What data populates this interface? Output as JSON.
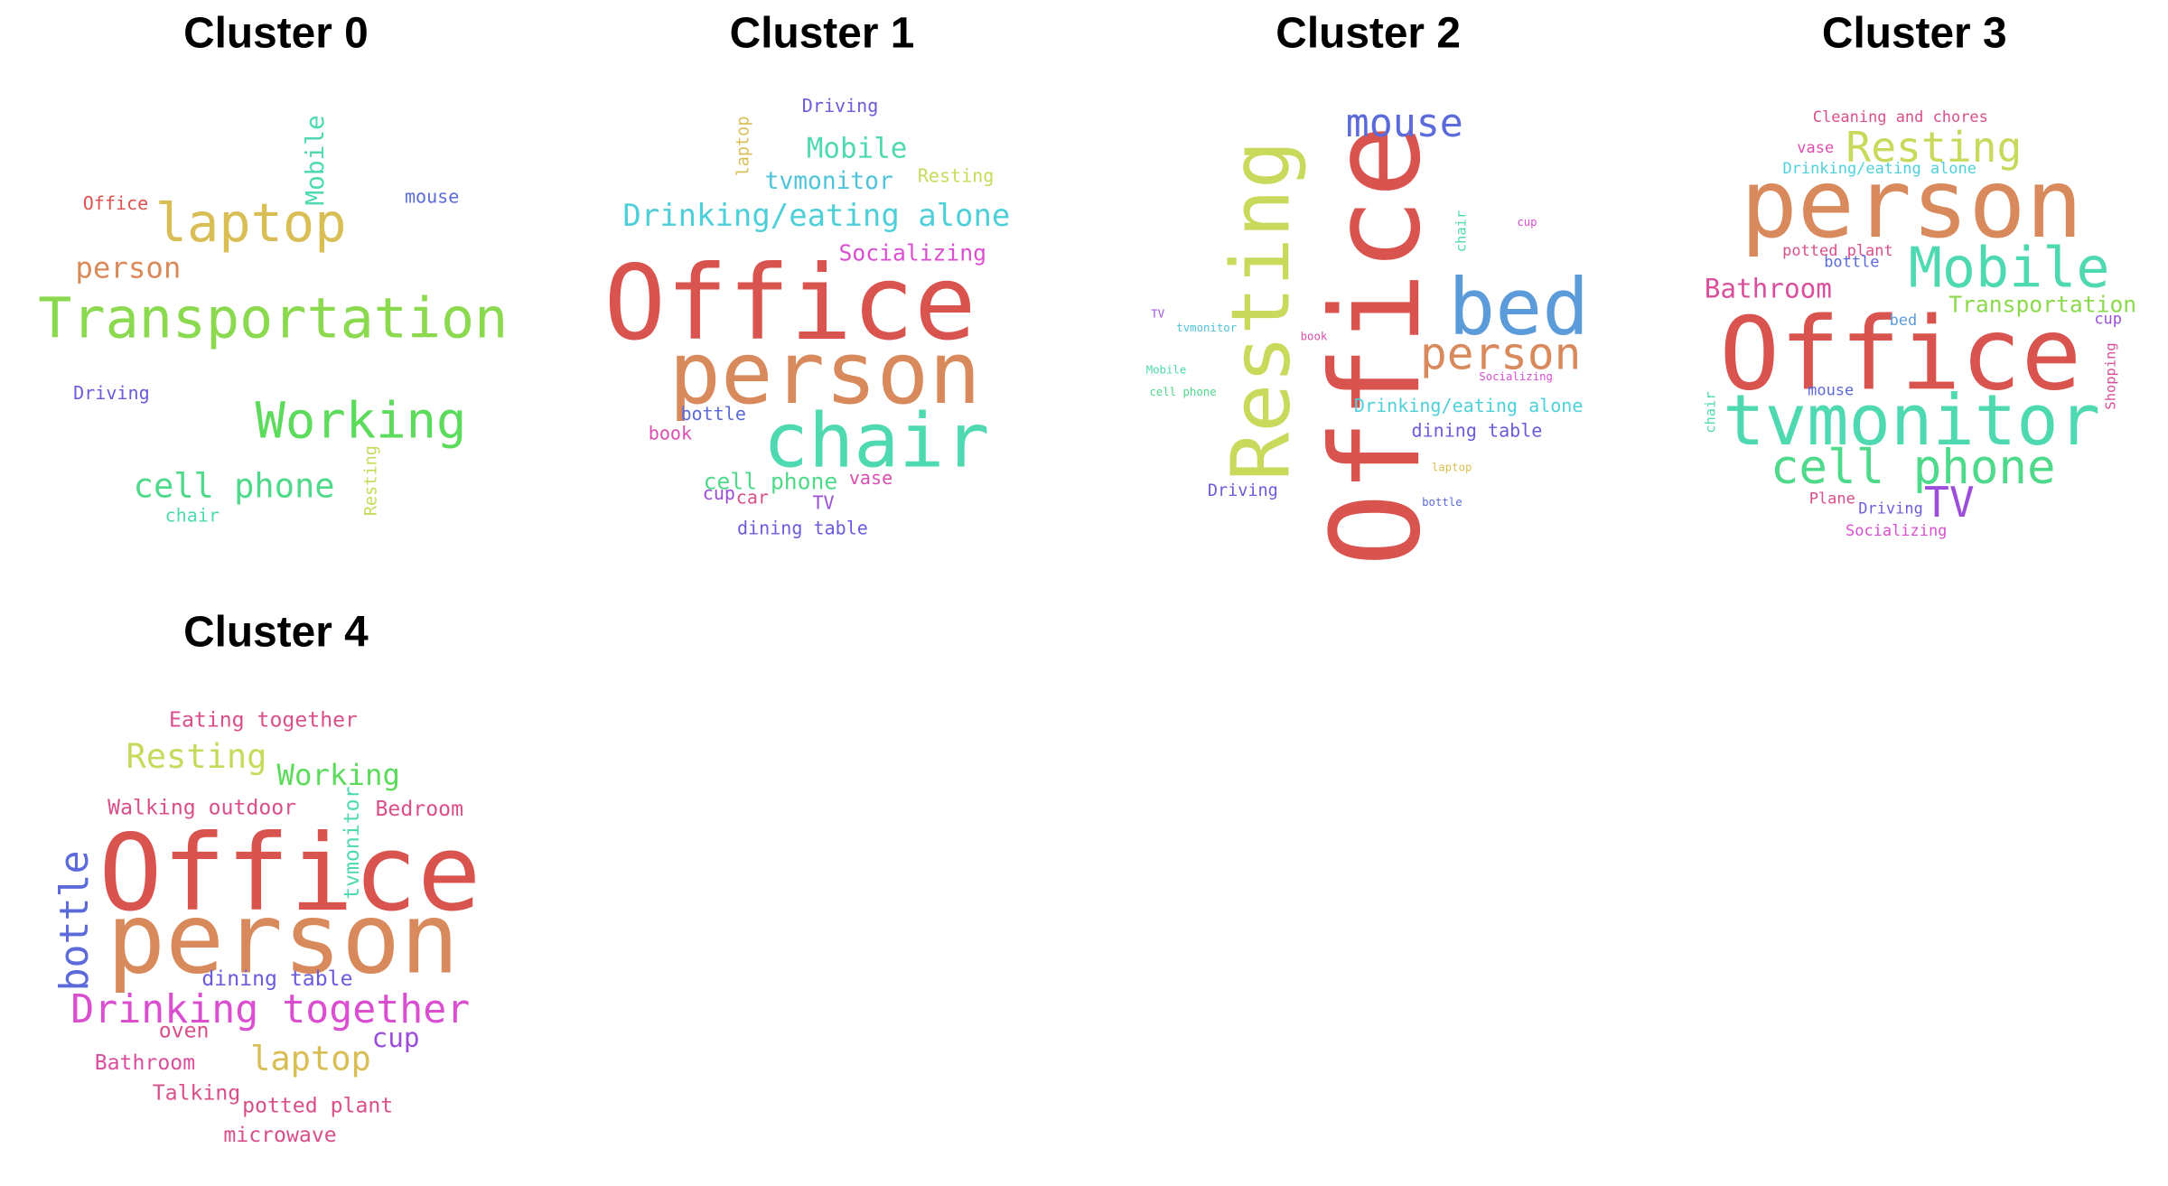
{
  "clusters": [
    {
      "title": "Cluster 0",
      "words": [
        {
          "text": "Transportation",
          "color": "#8bd94f",
          "size": 40,
          "rot": 0
        },
        {
          "text": "laptop",
          "color": "#d9be55",
          "size": 38,
          "rot": 0
        },
        {
          "text": "Working",
          "color": "#5cdb5c",
          "size": 36,
          "rot": 0
        },
        {
          "text": "cell phone",
          "color": "#4fd98a",
          "size": 24,
          "rot": 0
        },
        {
          "text": "person",
          "color": "#d98a5c",
          "size": 21,
          "rot": 0
        },
        {
          "text": "Mobile",
          "color": "#4fd9b0",
          "size": 18,
          "rot": 90
        },
        {
          "text": "Office",
          "color": "#d9534f",
          "size": 13,
          "rot": 0
        },
        {
          "text": "mouse",
          "color": "#5c6bd9",
          "size": 13,
          "rot": 0
        },
        {
          "text": "Driving",
          "color": "#6b5cd9",
          "size": 13,
          "rot": 0
        },
        {
          "text": "Resting",
          "color": "#c8d95c",
          "size": 12,
          "rot": 90
        },
        {
          "text": "chair",
          "color": "#4fd9b0",
          "size": 13,
          "rot": 0
        }
      ]
    },
    {
      "title": "Cluster 1",
      "words": [
        {
          "text": "Office",
          "color": "#d9534f",
          "size": 74,
          "rot": 0
        },
        {
          "text": "person",
          "color": "#d98a5c",
          "size": 62,
          "rot": 0
        },
        {
          "text": "chair",
          "color": "#4fd9b0",
          "size": 54,
          "rot": 0
        },
        {
          "text": "Drinking/eating alone",
          "color": "#4fd0d9",
          "size": 22,
          "rot": 0
        },
        {
          "text": "Mobile",
          "color": "#4fd9b0",
          "size": 20,
          "rot": 0
        },
        {
          "text": "tvmonitor",
          "color": "#4fc3d9",
          "size": 17,
          "rot": 0
        },
        {
          "text": "Socializing",
          "color": "#d94fd0",
          "size": 16,
          "rot": 0
        },
        {
          "text": "cell phone",
          "color": "#4fd98a",
          "size": 16,
          "rot": 0
        },
        {
          "text": "Driving",
          "color": "#6b5cd9",
          "size": 13,
          "rot": 0
        },
        {
          "text": "Resting",
          "color": "#c8d95c",
          "size": 13,
          "rot": 0
        },
        {
          "text": "laptop",
          "color": "#d9be55",
          "size": 12,
          "rot": 90
        },
        {
          "text": "bottle",
          "color": "#5c6bd9",
          "size": 13,
          "rot": 0
        },
        {
          "text": "book",
          "color": "#d94fb0",
          "size": 13,
          "rot": 0
        },
        {
          "text": "vase",
          "color": "#d94fb0",
          "size": 13,
          "rot": 0
        },
        {
          "text": "cup",
          "color": "#9b4fd9",
          "size": 13,
          "rot": 0
        },
        {
          "text": "car",
          "color": "#d94f8a",
          "size": 13,
          "rot": 0
        },
        {
          "text": "TV",
          "color": "#9b4fd9",
          "size": 13,
          "rot": 0
        },
        {
          "text": "dining table",
          "color": "#6b5cd9",
          "size": 13,
          "rot": 0
        }
      ]
    },
    {
      "title": "Cluster 2",
      "words": [
        {
          "text": "Office",
          "color": "#d9534f",
          "size": 88,
          "rot": 90
        },
        {
          "text": "Resting",
          "color": "#c8d95c",
          "size": 58,
          "rot": 90
        },
        {
          "text": "bed",
          "color": "#5c9bd9",
          "size": 56,
          "rot": 0
        },
        {
          "text": "person",
          "color": "#d98a5c",
          "size": 32,
          "rot": 0
        },
        {
          "text": "mouse",
          "color": "#5c6bd9",
          "size": 28,
          "rot": 0
        },
        {
          "text": "Drinking/eating alone",
          "color": "#4fd0d9",
          "size": 13,
          "rot": 0
        },
        {
          "text": "dining table",
          "color": "#6b5cd9",
          "size": 13,
          "rot": 0
        },
        {
          "text": "Driving",
          "color": "#6b5cd9",
          "size": 12,
          "rot": 0
        },
        {
          "text": "chair",
          "color": "#4fd9b0",
          "size": 10,
          "rot": 90
        },
        {
          "text": "cup",
          "color": "#d94fd0",
          "size": 8,
          "rot": 0
        },
        {
          "text": "TV",
          "color": "#9b4fd9",
          "size": 8,
          "rot": 0
        },
        {
          "text": "tvmonitor",
          "color": "#4fc3d9",
          "size": 8,
          "rot": 0
        },
        {
          "text": "book",
          "color": "#d94fb0",
          "size": 8,
          "rot": 0
        },
        {
          "text": "Mobile",
          "color": "#4fd9b0",
          "size": 8,
          "rot": 0
        },
        {
          "text": "Socializing",
          "color": "#d94fd0",
          "size": 8,
          "rot": 0
        },
        {
          "text": "cell phone",
          "color": "#4fd98a",
          "size": 8,
          "rot": 0
        },
        {
          "text": "laptop",
          "color": "#d9be55",
          "size": 8,
          "rot": 0
        },
        {
          "text": "bottle",
          "color": "#5c6bd9",
          "size": 8,
          "rot": 0
        }
      ]
    },
    {
      "title": "Cluster 3",
      "words": [
        {
          "text": "Office",
          "color": "#d9534f",
          "size": 72,
          "rot": 0
        },
        {
          "text": "person",
          "color": "#d98a5c",
          "size": 68,
          "rot": 0
        },
        {
          "text": "tvmonitor",
          "color": "#4fd9b0",
          "size": 50,
          "rot": 0
        },
        {
          "text": "Mobile",
          "color": "#4fd9b0",
          "size": 40,
          "rot": 0
        },
        {
          "text": "cell phone",
          "color": "#4fd98a",
          "size": 34,
          "rot": 0
        },
        {
          "text": "Resting",
          "color": "#c8d95c",
          "size": 30,
          "rot": 0
        },
        {
          "text": "TV",
          "color": "#9b4fd9",
          "size": 30,
          "rot": 0
        },
        {
          "text": "Bathroom",
          "color": "#d94f9b",
          "size": 19,
          "rot": 0
        },
        {
          "text": "Transportation",
          "color": "#8bd94f",
          "size": 16,
          "rot": 0
        },
        {
          "text": "Cleaning and chores",
          "color": "#d94f8a",
          "size": 11,
          "rot": 0
        },
        {
          "text": "vase",
          "color": "#d94fb0",
          "size": 11,
          "rot": 0
        },
        {
          "text": "Drinking/eating alone",
          "color": "#4fd0d9",
          "size": 11,
          "rot": 0
        },
        {
          "text": "potted plant",
          "color": "#d94f8a",
          "size": 11,
          "rot": 0
        },
        {
          "text": "bottle",
          "color": "#5c6bd9",
          "size": 11,
          "rot": 0
        },
        {
          "text": "bed",
          "color": "#5c9bd9",
          "size": 11,
          "rot": 0
        },
        {
          "text": "cup",
          "color": "#9b4fd9",
          "size": 11,
          "rot": 0
        },
        {
          "text": "Shopping",
          "color": "#d94f9b",
          "size": 10,
          "rot": 90
        },
        {
          "text": "chair",
          "color": "#4fd9b0",
          "size": 10,
          "rot": 90
        },
        {
          "text": "mouse",
          "color": "#5c6bd9",
          "size": 11,
          "rot": 0
        },
        {
          "text": "Plane",
          "color": "#d94f8a",
          "size": 11,
          "rot": 0
        },
        {
          "text": "Driving",
          "color": "#6b5cd9",
          "size": 11,
          "rot": 0
        },
        {
          "text": "Socializing",
          "color": "#d94fd0",
          "size": 11,
          "rot": 0
        }
      ]
    },
    {
      "title": "Cluster 4",
      "words": [
        {
          "text": "Office",
          "color": "#d9534f",
          "size": 76,
          "rot": 0
        },
        {
          "text": "person",
          "color": "#d98a5c",
          "size": 70,
          "rot": 0
        },
        {
          "text": "Drinking together",
          "color": "#d94fd0",
          "size": 28,
          "rot": 0
        },
        {
          "text": "bottle",
          "color": "#5c6bd9",
          "size": 28,
          "rot": 90
        },
        {
          "text": "Resting",
          "color": "#c8d95c",
          "size": 24,
          "rot": 0
        },
        {
          "text": "laptop",
          "color": "#d9be55",
          "size": 24,
          "rot": 0
        },
        {
          "text": "Working",
          "color": "#5cdb5c",
          "size": 21,
          "rot": 0
        },
        {
          "text": "Eating together",
          "color": "#d94f8a",
          "size": 15,
          "rot": 0
        },
        {
          "text": "Walking outdoor",
          "color": "#d94f8a",
          "size": 15,
          "rot": 0
        },
        {
          "text": "Bedroom",
          "color": "#d94f8a",
          "size": 15,
          "rot": 0
        },
        {
          "text": "tvmonitor",
          "color": "#4fd9b0",
          "size": 15,
          "rot": 90
        },
        {
          "text": "dining table",
          "color": "#6b5cd9",
          "size": 15,
          "rot": 0
        },
        {
          "text": "cup",
          "color": "#9b4fd9",
          "size": 19,
          "rot": 0
        },
        {
          "text": "oven",
          "color": "#d94f8a",
          "size": 15,
          "rot": 0
        },
        {
          "text": "Bathroom",
          "color": "#d94f9b",
          "size": 15,
          "rot": 0
        },
        {
          "text": "Talking",
          "color": "#d94f8a",
          "size": 15,
          "rot": 0
        },
        {
          "text": "potted plant",
          "color": "#d94f8a",
          "size": 15,
          "rot": 0
        },
        {
          "text": "microwave",
          "color": "#d94f8a",
          "size": 15,
          "rot": 0
        }
      ]
    }
  ]
}
